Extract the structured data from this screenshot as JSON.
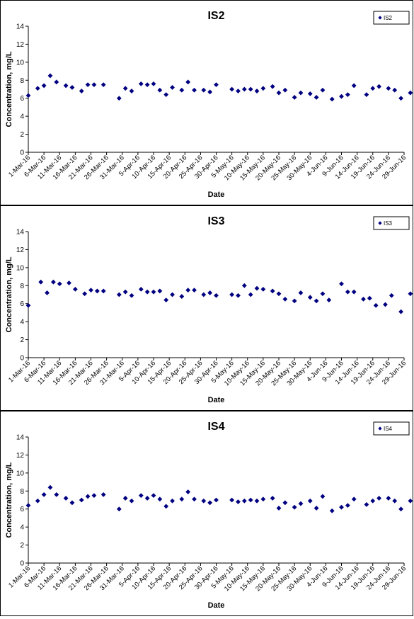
{
  "chart_data": [
    {
      "type": "scatter",
      "title": "IS2",
      "xlabel": "Date",
      "ylabel": "Concentration, mg/L",
      "ylim": [
        0,
        14
      ],
      "yticks": [
        0,
        2,
        4,
        6,
        8,
        10,
        12,
        14
      ],
      "xlim": [
        "1-Mar-16",
        "29-Jun-16"
      ],
      "xticks": [
        "1-Mar-16",
        "6-Mar-16",
        "11-Mar-16",
        "16-Mar-16",
        "21-Mar-16",
        "26-Mar-16",
        "31-Mar-16",
        "5-Apr-16",
        "10-Apr-16",
        "15-Apr-16",
        "20-Apr-16",
        "25-Apr-16",
        "30-Apr-16",
        "5-May-16",
        "10-May-16",
        "15-May-16",
        "20-May-16",
        "25-May-16",
        "30-May-16",
        "4-Jun-16",
        "9-Jun-16",
        "14-Jun-16",
        "19-Jun-16",
        "24-Jun-16",
        "29-Jun-16"
      ],
      "grid": false,
      "legend": "top-right",
      "marker": "diamond",
      "color": "#000080",
      "series": [
        {
          "name": "IS2",
          "points": [
            [
              "1-Mar-16",
              6.3
            ],
            [
              "4-Mar-16",
              7.1
            ],
            [
              "6-Mar-16",
              7.4
            ],
            [
              "8-Mar-16",
              8.5
            ],
            [
              "10-Mar-16",
              7.8
            ],
            [
              "13-Mar-16",
              7.4
            ],
            [
              "15-Mar-16",
              7.2
            ],
            [
              "18-Mar-16",
              6.8
            ],
            [
              "20-Mar-16",
              7.5
            ],
            [
              "22-Mar-16",
              7.5
            ],
            [
              "25-Mar-16",
              7.5
            ],
            [
              "30-Mar-16",
              6.0
            ],
            [
              "1-Apr-16",
              7.1
            ],
            [
              "3-Apr-16",
              6.8
            ],
            [
              "6-Apr-16",
              7.6
            ],
            [
              "8-Apr-16",
              7.5
            ],
            [
              "10-Apr-16",
              7.6
            ],
            [
              "12-Apr-16",
              6.9
            ],
            [
              "14-Apr-16",
              6.4
            ],
            [
              "16-Apr-16",
              7.2
            ],
            [
              "19-Apr-16",
              6.9
            ],
            [
              "21-Apr-16",
              7.8
            ],
            [
              "23-Apr-16",
              6.9
            ],
            [
              "26-Apr-16",
              6.9
            ],
            [
              "28-Apr-16",
              6.7
            ],
            [
              "30-Apr-16",
              7.5
            ],
            [
              "5-May-16",
              7.0
            ],
            [
              "7-May-16",
              6.8
            ],
            [
              "9-May-16",
              7.0
            ],
            [
              "11-May-16",
              7.0
            ],
            [
              "13-May-16",
              6.8
            ],
            [
              "15-May-16",
              7.1
            ],
            [
              "18-May-16",
              7.3
            ],
            [
              "20-May-16",
              6.6
            ],
            [
              "22-May-16",
              6.9
            ],
            [
              "25-May-16",
              6.1
            ],
            [
              "27-May-16",
              6.6
            ],
            [
              "30-May-16",
              6.5
            ],
            [
              "1-Jun-16",
              6.1
            ],
            [
              "3-Jun-16",
              6.9
            ],
            [
              "6-Jun-16",
              5.9
            ],
            [
              "9-Jun-16",
              6.2
            ],
            [
              "11-Jun-16",
              6.4
            ],
            [
              "13-Jun-16",
              7.4
            ],
            [
              "17-Jun-16",
              6.4
            ],
            [
              "19-Jun-16",
              7.1
            ],
            [
              "21-Jun-16",
              7.3
            ],
            [
              "24-Jun-16",
              7.1
            ],
            [
              "26-Jun-16",
              6.9
            ],
            [
              "28-Jun-16",
              6.0
            ],
            [
              "1-Jul-16",
              6.6
            ],
            [
              "3-Jul-16",
              7.2
            ]
          ]
        }
      ]
    },
    {
      "type": "scatter",
      "title": "IS3",
      "xlabel": "Date",
      "ylabel": "Concentration, mg/L",
      "ylim": [
        0,
        14
      ],
      "yticks": [
        0,
        2,
        4,
        6,
        8,
        10,
        12,
        14
      ],
      "xlim": [
        "1-Mar-16",
        "29-Jun-16"
      ],
      "xticks": [
        "1-Mar-16",
        "6-Mar-16",
        "11-Mar-16",
        "16-Mar-16",
        "21-Mar-16",
        "26-Mar-16",
        "31-Mar-16",
        "5-Apr-16",
        "10-Apr-16",
        "15-Apr-16",
        "20-Apr-16",
        "25-Apr-16",
        "30-Apr-16",
        "5-May-16",
        "10-May-16",
        "15-May-16",
        "20-May-16",
        "25-May-16",
        "30-May-16",
        "4-Jun-16",
        "9-Jun-16",
        "14-Jun-16",
        "19-Jun-16",
        "24-Jun-16",
        "29-Jun-16"
      ],
      "grid": false,
      "legend": "top-right",
      "marker": "diamond",
      "color": "#000080",
      "series": [
        {
          "name": "IS3",
          "points": [
            [
              "1-Mar-16",
              5.8
            ],
            [
              "5-Mar-16",
              8.4
            ],
            [
              "7-Mar-16",
              7.2
            ],
            [
              "9-Mar-16",
              8.4
            ],
            [
              "11-Mar-16",
              8.2
            ],
            [
              "14-Mar-16",
              8.3
            ],
            [
              "16-Mar-16",
              7.6
            ],
            [
              "19-Mar-16",
              7.1
            ],
            [
              "21-Mar-16",
              7.5
            ],
            [
              "23-Mar-16",
              7.4
            ],
            [
              "25-Mar-16",
              7.4
            ],
            [
              "30-Mar-16",
              7.0
            ],
            [
              "1-Apr-16",
              7.3
            ],
            [
              "3-Apr-16",
              6.9
            ],
            [
              "6-Apr-16",
              7.6
            ],
            [
              "8-Apr-16",
              7.3
            ],
            [
              "10-Apr-16",
              7.3
            ],
            [
              "12-Apr-16",
              7.4
            ],
            [
              "14-Apr-16",
              6.4
            ],
            [
              "16-Apr-16",
              7.0
            ],
            [
              "19-Apr-16",
              6.8
            ],
            [
              "21-Apr-16",
              7.5
            ],
            [
              "23-Apr-16",
              7.5
            ],
            [
              "26-Apr-16",
              7.0
            ],
            [
              "28-Apr-16",
              7.2
            ],
            [
              "30-Apr-16",
              6.9
            ],
            [
              "5-May-16",
              7.0
            ],
            [
              "7-May-16",
              6.9
            ],
            [
              "9-May-16",
              8.0
            ],
            [
              "11-May-16",
              7.0
            ],
            [
              "13-May-16",
              7.7
            ],
            [
              "15-May-16",
              7.6
            ],
            [
              "18-May-16",
              7.4
            ],
            [
              "20-May-16",
              7.1
            ],
            [
              "22-May-16",
              6.5
            ],
            [
              "25-May-16",
              6.3
            ],
            [
              "27-May-16",
              7.2
            ],
            [
              "30-May-16",
              6.7
            ],
            [
              "1-Jun-16",
              6.3
            ],
            [
              "3-Jun-16",
              7.1
            ],
            [
              "5-Jun-16",
              6.4
            ],
            [
              "9-Jun-16",
              8.2
            ],
            [
              "11-Jun-16",
              7.3
            ],
            [
              "13-Jun-16",
              7.3
            ],
            [
              "16-Jun-16",
              6.5
            ],
            [
              "18-Jun-16",
              6.6
            ],
            [
              "20-Jun-16",
              5.8
            ],
            [
              "23-Jun-16",
              5.9
            ],
            [
              "25-Jun-16",
              6.9
            ],
            [
              "28-Jun-16",
              5.1
            ],
            [
              "1-Jul-16",
              7.1
            ],
            [
              "3-Jul-16",
              6.7
            ]
          ]
        }
      ]
    },
    {
      "type": "scatter",
      "title": "IS4",
      "xlabel": "Date",
      "ylabel": "Concentration, mg/L",
      "ylim": [
        0,
        14
      ],
      "yticks": [
        0,
        2,
        4,
        6,
        8,
        10,
        12,
        14
      ],
      "xlim": [
        "1-Mar-16",
        "29-Jun-16"
      ],
      "xticks": [
        "1-Mar-16",
        "6-Mar-16",
        "11-Mar-16",
        "16-Mar-16",
        "21-Mar-16",
        "26-Mar-16",
        "31-Mar-16",
        "5-Apr-16",
        "10-Apr-16",
        "15-Apr-16",
        "20-Apr-16",
        "25-Apr-16",
        "30-Apr-16",
        "5-May-16",
        "10-May-16",
        "15-May-16",
        "20-May-16",
        "25-May-16",
        "30-May-16",
        "4-Jun-16",
        "9-Jun-16",
        "14-Jun-16",
        "19-Jun-16",
        "24-Jun-16",
        "29-Jun-16"
      ],
      "grid": false,
      "legend": "top-right",
      "marker": "diamond",
      "color": "#000080",
      "series": [
        {
          "name": "IS4",
          "points": [
            [
              "1-Mar-16",
              6.4
            ],
            [
              "4-Mar-16",
              6.9
            ],
            [
              "6-Mar-16",
              7.6
            ],
            [
              "8-Mar-16",
              8.4
            ],
            [
              "10-Mar-16",
              7.6
            ],
            [
              "13-Mar-16",
              7.2
            ],
            [
              "15-Mar-16",
              6.7
            ],
            [
              "18-Mar-16",
              7.0
            ],
            [
              "20-Mar-16",
              7.4
            ],
            [
              "22-Mar-16",
              7.5
            ],
            [
              "25-Mar-16",
              7.6
            ],
            [
              "30-Mar-16",
              6.0
            ],
            [
              "1-Apr-16",
              7.2
            ],
            [
              "3-Apr-16",
              6.9
            ],
            [
              "6-Apr-16",
              7.5
            ],
            [
              "8-Apr-16",
              7.2
            ],
            [
              "10-Apr-16",
              7.5
            ],
            [
              "12-Apr-16",
              7.1
            ],
            [
              "14-Apr-16",
              6.3
            ],
            [
              "16-Apr-16",
              6.9
            ],
            [
              "19-Apr-16",
              7.1
            ],
            [
              "21-Apr-16",
              7.9
            ],
            [
              "23-Apr-16",
              7.1
            ],
            [
              "26-Apr-16",
              6.9
            ],
            [
              "28-Apr-16",
              6.7
            ],
            [
              "30-Apr-16",
              7.0
            ],
            [
              "5-May-16",
              7.0
            ],
            [
              "7-May-16",
              6.8
            ],
            [
              "9-May-16",
              6.9
            ],
            [
              "11-May-16",
              7.0
            ],
            [
              "13-May-16",
              6.9
            ],
            [
              "15-May-16",
              7.1
            ],
            [
              "18-May-16",
              7.2
            ],
            [
              "20-May-16",
              6.1
            ],
            [
              "22-May-16",
              6.7
            ],
            [
              "25-May-16",
              6.2
            ],
            [
              "27-May-16",
              6.6
            ],
            [
              "30-May-16",
              6.9
            ],
            [
              "1-Jun-16",
              6.1
            ],
            [
              "3-Jun-16",
              7.4
            ],
            [
              "6-Jun-16",
              5.8
            ],
            [
              "9-Jun-16",
              6.2
            ],
            [
              "11-Jun-16",
              6.4
            ],
            [
              "13-Jun-16",
              7.1
            ],
            [
              "17-Jun-16",
              6.5
            ],
            [
              "19-Jun-16",
              6.9
            ],
            [
              "21-Jun-16",
              7.2
            ],
            [
              "24-Jun-16",
              7.2
            ],
            [
              "26-Jun-16",
              6.9
            ],
            [
              "28-Jun-16",
              6.0
            ],
            [
              "1-Jul-16",
              6.9
            ],
            [
              "3-Jul-16",
              6.5
            ]
          ]
        }
      ]
    }
  ]
}
